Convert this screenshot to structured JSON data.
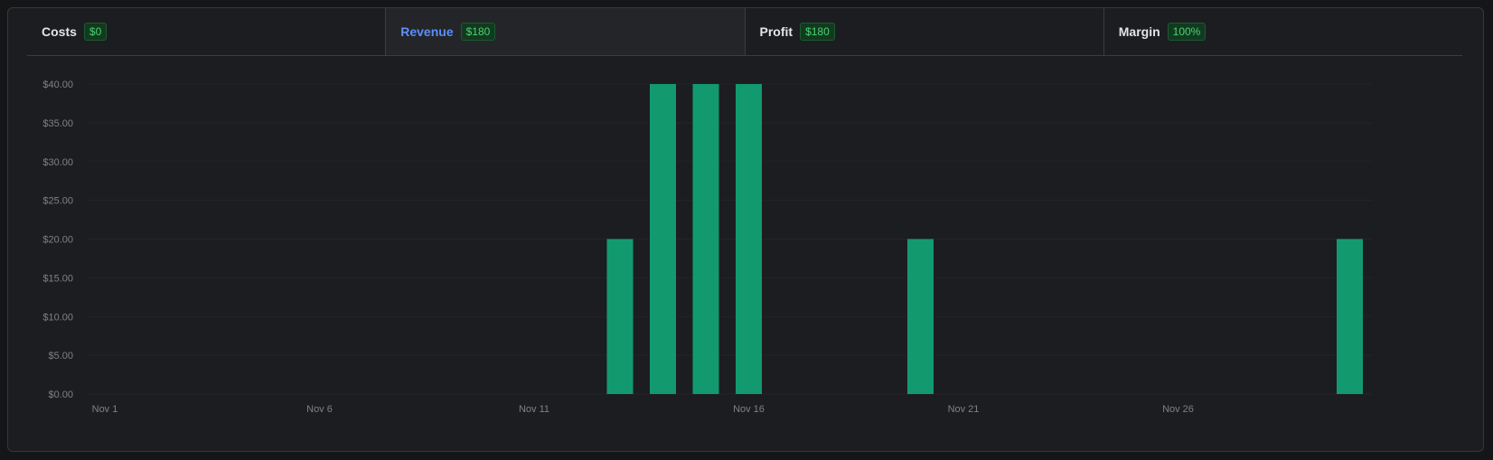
{
  "tabs": [
    {
      "label": "Costs",
      "value": "$0"
    },
    {
      "label": "Revenue",
      "value": "$180"
    },
    {
      "label": "Profit",
      "value": "$180"
    },
    {
      "label": "Margin",
      "value": "100%"
    }
  ],
  "colors": {
    "bar": "#129a6e",
    "active_tab": "#5b8ff9",
    "badge_text": "#4ad36e",
    "grid": "#232428"
  },
  "chart_data": {
    "type": "bar",
    "title": "",
    "xlabel": "",
    "ylabel": "",
    "ylim": [
      0,
      40
    ],
    "yticks": [
      "$0.00",
      "$5.00",
      "$10.00",
      "$15.00",
      "$20.00",
      "$25.00",
      "$30.00",
      "$35.00",
      "$40.00"
    ],
    "xticks": [
      {
        "day": 1,
        "label": "Nov 1"
      },
      {
        "day": 6,
        "label": "Nov 6"
      },
      {
        "day": 11,
        "label": "Nov 11"
      },
      {
        "day": 16,
        "label": "Nov 16"
      },
      {
        "day": 21,
        "label": "Nov 21"
      },
      {
        "day": 26,
        "label": "Nov 26"
      }
    ],
    "categories": [
      "Nov 13",
      "Nov 14",
      "Nov 15",
      "Nov 16",
      "Nov 20",
      "Nov 30"
    ],
    "values": [
      20,
      40,
      40,
      40,
      20,
      20
    ]
  }
}
